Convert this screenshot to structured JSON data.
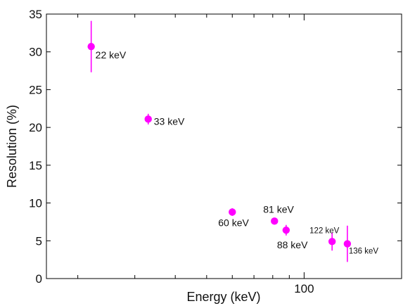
{
  "chart_data": {
    "type": "scatter",
    "title": "",
    "xlabel": "Energy (keV)",
    "ylabel": "Resolution (%)",
    "xscale": "log",
    "xlim": [
      16,
      200
    ],
    "ylim": [
      0,
      35
    ],
    "x_ticks": [
      100
    ],
    "x_tick_labels": [
      "100"
    ],
    "y_ticks": [
      0,
      5,
      10,
      15,
      20,
      25,
      30,
      35
    ],
    "y_tick_labels": [
      "0",
      "5",
      "10",
      "15",
      "20",
      "25",
      "30",
      "35"
    ],
    "grid": false,
    "legend": false,
    "marker_color": "#ff00ff",
    "series": [
      {
        "points": [
          {
            "x": 22,
            "y": 30.7,
            "err": 3.4,
            "label": "22 keV"
          },
          {
            "x": 33,
            "y": 21.1,
            "err": 0.7,
            "label": "33 keV"
          },
          {
            "x": 60,
            "y": 8.8,
            "err": 0.5,
            "label": "60 keV"
          },
          {
            "x": 81,
            "y": 7.6,
            "err": 0.4,
            "label": "81 keV"
          },
          {
            "x": 88,
            "y": 6.4,
            "err": 0.7,
            "label": "88 keV"
          },
          {
            "x": 122,
            "y": 4.9,
            "err": 1.2,
            "label": "122 keV"
          },
          {
            "x": 136,
            "y": 4.6,
            "err": 2.4,
            "label": "136 keV"
          }
        ]
      }
    ]
  }
}
